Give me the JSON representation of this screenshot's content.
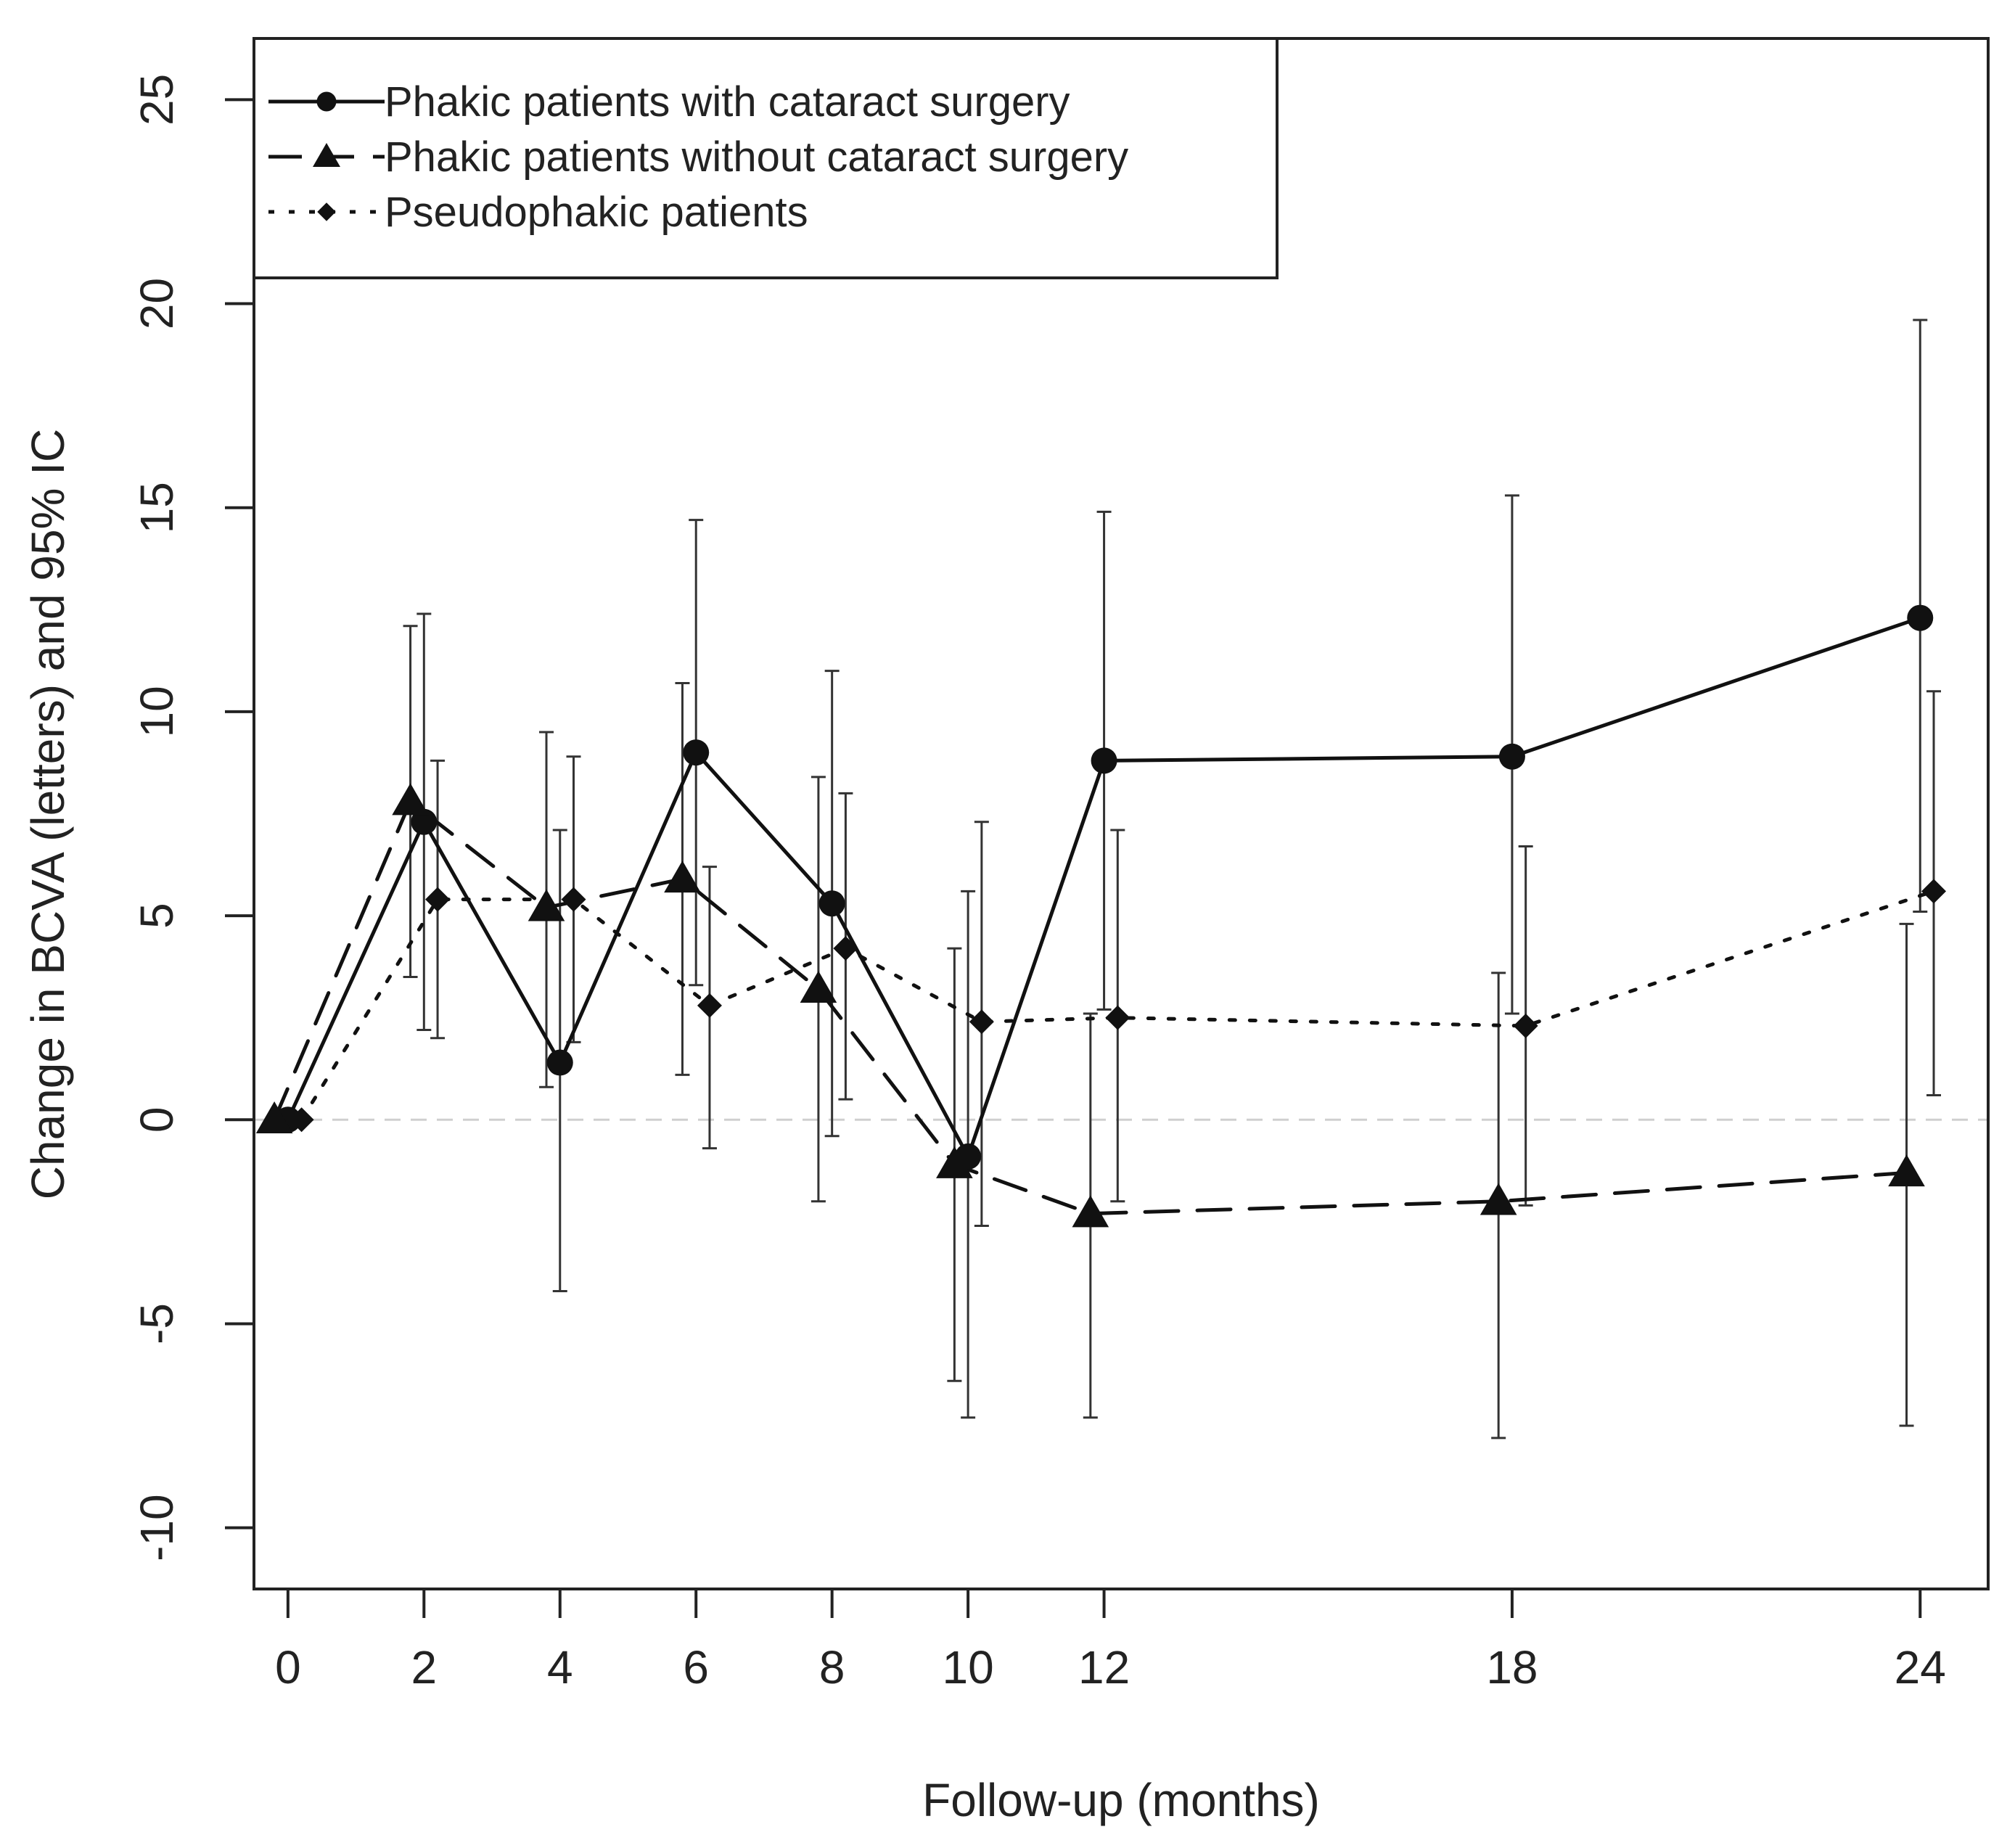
{
  "chart_data": {
    "type": "line",
    "title": "",
    "xlabel": "Follow-up (months)",
    "ylabel": "Change in BCVA (letters) and 95% IC",
    "xlim": [
      -0.5,
      25
    ],
    "ylim": [
      -11.5,
      26.5
    ],
    "x_ticks": [
      0,
      2,
      4,
      6,
      8,
      10,
      12,
      18,
      24
    ],
    "x_tick_labels": [
      "0",
      "2",
      "4",
      "6",
      "8",
      "10",
      "12",
      "18",
      "24"
    ],
    "y_ticks": [
      -10,
      -5,
      0,
      5,
      10,
      15,
      20,
      25
    ],
    "y_tick_labels": [
      "-10",
      "-5",
      "0",
      "5",
      "10",
      "15",
      "20",
      "25"
    ],
    "reference_line_y": 0,
    "legend_position": "top-left",
    "series": [
      {
        "name": "Phakic patients with cataract surgery",
        "marker": "circle",
        "linestyle": "solid",
        "color": "#111111",
        "x": [
          0,
          2,
          4,
          6,
          8,
          10,
          12,
          18,
          24
        ],
        "values": [
          0,
          7.3,
          1.4,
          9.0,
          5.3,
          -0.9,
          8.8,
          8.9,
          12.3
        ],
        "ci_lower": [
          0,
          2.2,
          -4.2,
          3.3,
          -0.4,
          -7.3,
          2.7,
          2.6,
          5.1
        ],
        "ci_upper": [
          0,
          12.4,
          7.1,
          14.7,
          11.0,
          5.6,
          14.9,
          15.3,
          19.6
        ]
      },
      {
        "name": "Phakic patients without cataract surgery",
        "marker": "triangle",
        "linestyle": "dashed",
        "color": "#111111",
        "x": [
          -0.2,
          1.8,
          3.8,
          5.8,
          7.8,
          9.8,
          11.8,
          17.8,
          23.8
        ],
        "values": [
          0,
          7.8,
          5.2,
          5.9,
          3.2,
          -1.1,
          -2.3,
          -2.0,
          -1.3
        ],
        "ci_lower": [
          0,
          3.5,
          0.8,
          1.1,
          -2.0,
          -6.4,
          -7.3,
          -7.8,
          -7.5
        ],
        "ci_upper": [
          0,
          12.1,
          9.5,
          10.7,
          8.4,
          4.2,
          2.6,
          3.6,
          4.8
        ]
      },
      {
        "name": "Pseudophakic patients",
        "marker": "diamond",
        "linestyle": "dotted",
        "color": "#111111",
        "x": [
          0.2,
          2.2,
          4.2,
          6.2,
          8.2,
          10.2,
          12.2,
          18.2,
          24.2
        ],
        "values": [
          0,
          5.4,
          5.4,
          2.8,
          4.2,
          2.4,
          2.5,
          2.3,
          5.6
        ],
        "ci_lower": [
          0,
          2.0,
          1.9,
          -0.7,
          0.5,
          -2.6,
          -2.0,
          -2.1,
          0.6
        ],
        "ci_upper": [
          0,
          8.8,
          8.9,
          6.2,
          8.0,
          7.3,
          7.1,
          6.7,
          10.5
        ]
      }
    ]
  }
}
